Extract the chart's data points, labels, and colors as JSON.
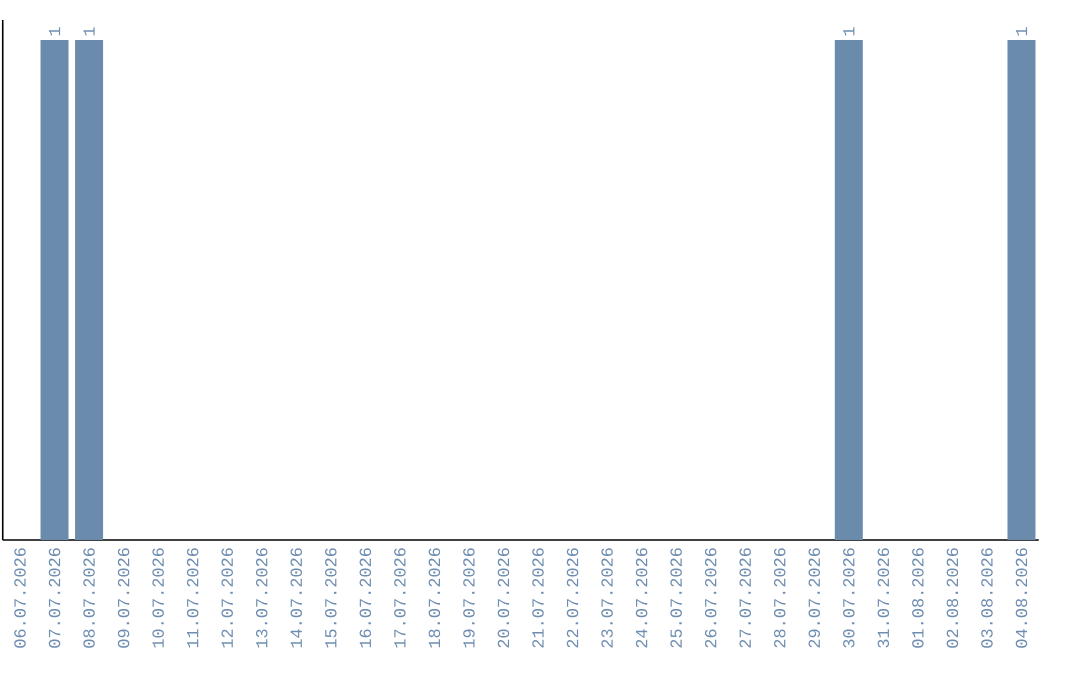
{
  "chart_data": {
    "type": "bar",
    "categories": [
      "06.07.2026",
      "07.07.2026",
      "08.07.2026",
      "09.07.2026",
      "10.07.2026",
      "11.07.2026",
      "12.07.2026",
      "13.07.2026",
      "14.07.2026",
      "15.07.2026",
      "16.07.2026",
      "17.07.2026",
      "18.07.2026",
      "19.07.2026",
      "20.07.2026",
      "21.07.2026",
      "22.07.2026",
      "23.07.2026",
      "24.07.2026",
      "25.07.2026",
      "26.07.2026",
      "27.07.2026",
      "28.07.2026",
      "29.07.2026",
      "30.07.2026",
      "31.07.2026",
      "01.08.2026",
      "02.08.2026",
      "03.08.2026",
      "04.08.2026"
    ],
    "values": [
      0,
      1,
      1,
      0,
      0,
      0,
      0,
      0,
      0,
      0,
      0,
      0,
      0,
      0,
      0,
      0,
      0,
      0,
      0,
      0,
      0,
      0,
      0,
      0,
      1,
      0,
      0,
      0,
      0,
      1
    ],
    "value_labels": [
      null,
      "1",
      "1",
      null,
      null,
      null,
      null,
      null,
      null,
      null,
      null,
      null,
      null,
      null,
      null,
      null,
      null,
      null,
      null,
      null,
      null,
      null,
      null,
      null,
      "1",
      null,
      null,
      null,
      null,
      "1"
    ],
    "color": "#6a8bab"
  }
}
